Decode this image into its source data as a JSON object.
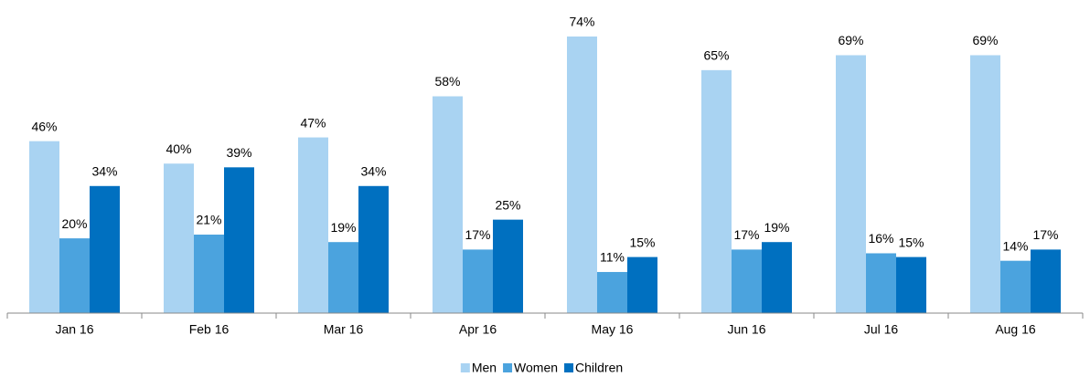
{
  "chart_data": {
    "type": "bar",
    "categories": [
      "Jan 16",
      "Feb 16",
      "Mar 16",
      "Apr 16",
      "May 16",
      "Jun 16",
      "Jul 16",
      "Aug 16"
    ],
    "series": [
      {
        "name": "Men",
        "color": "#a9d3f2",
        "values": [
          46,
          40,
          47,
          58,
          74,
          65,
          69,
          69
        ],
        "value_labels": [
          "46%",
          "40%",
          "47%",
          "58%",
          "74%",
          "65%",
          "69%",
          "69%"
        ]
      },
      {
        "name": "Women",
        "color": "#4ba3de",
        "values": [
          20,
          21,
          19,
          17,
          11,
          17,
          16,
          14
        ],
        "value_labels": [
          "20%",
          "21%",
          "19%",
          "17%",
          "11%",
          "17%",
          "16%",
          "14%"
        ]
      },
      {
        "name": "Children",
        "color": "#0070c0",
        "values": [
          34,
          39,
          34,
          25,
          15,
          19,
          15,
          17
        ],
        "value_labels": [
          "34%",
          "39%",
          "34%",
          "25%",
          "15%",
          "19%",
          "15%",
          "17%"
        ]
      }
    ],
    "legend": "bottom"
  }
}
